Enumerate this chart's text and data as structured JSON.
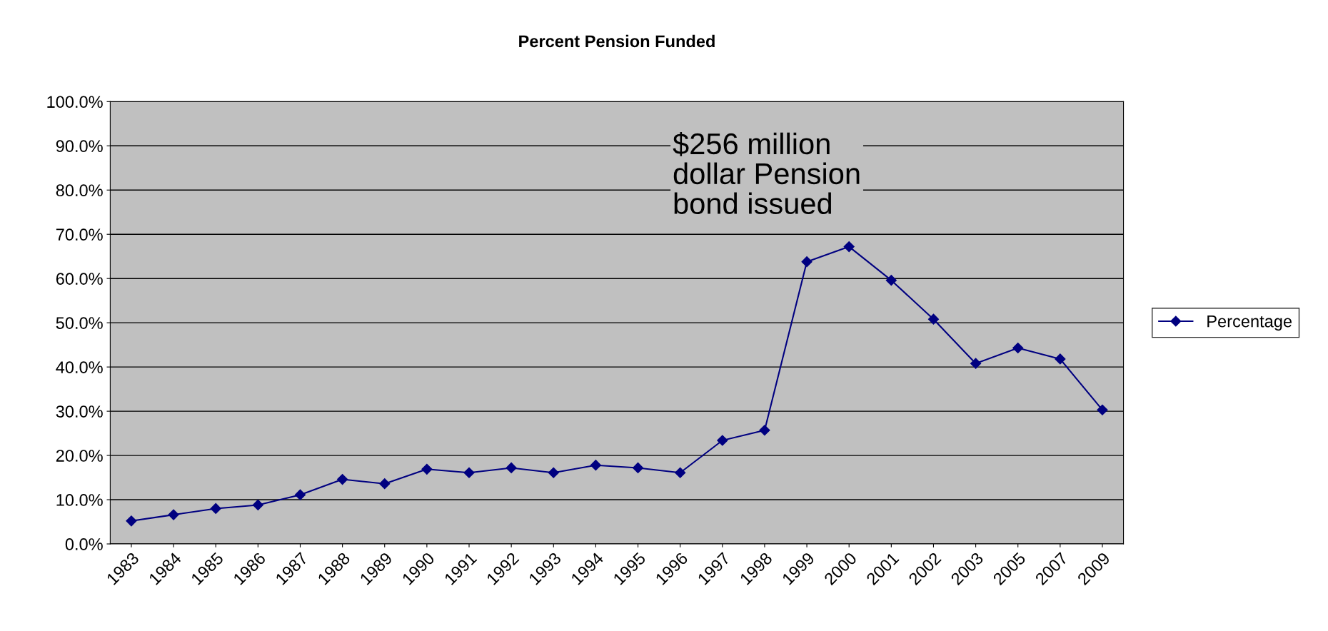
{
  "chart_data": {
    "type": "line",
    "title": "Percent Pension Funded",
    "categories": [
      "1983",
      "1984",
      "1985",
      "1986",
      "1987",
      "1988",
      "1989",
      "1990",
      "1991",
      "1992",
      "1993",
      "1994",
      "1995",
      "1996",
      "1997",
      "1998",
      "1999",
      "2000",
      "2001",
      "2002",
      "2003",
      "2005",
      "2007",
      "2009"
    ],
    "series": [
      {
        "name": "Percentage",
        "color": "#000080",
        "values": [
          5.2,
          6.6,
          8.0,
          8.8,
          11.1,
          14.6,
          13.6,
          16.9,
          16.1,
          17.2,
          16.1,
          17.8,
          17.2,
          16.1,
          23.4,
          25.7,
          63.8,
          67.2,
          59.6,
          50.8,
          40.8,
          44.3,
          41.8,
          30.3
        ]
      }
    ],
    "ylim": [
      0,
      100
    ],
    "yticks": [
      {
        "value": 0,
        "label": "0.0%"
      },
      {
        "value": 10,
        "label": "10.0%"
      },
      {
        "value": 20,
        "label": "20.0%"
      },
      {
        "value": 30,
        "label": "30.0%"
      },
      {
        "value": 40,
        "label": "40.0%"
      },
      {
        "value": 50,
        "label": "50.0%"
      },
      {
        "value": 60,
        "label": "60.0%"
      },
      {
        "value": 70,
        "label": "70.0%"
      },
      {
        "value": 80,
        "label": "80.0%"
      },
      {
        "value": 90,
        "label": "90.0%"
      },
      {
        "value": 100,
        "label": "100.0%"
      }
    ],
    "annotations": [
      "$256 million\ndollar Pension\nbond issued"
    ],
    "grid": "y",
    "legend": "right",
    "marker": "diamond",
    "line_style": "solid"
  }
}
